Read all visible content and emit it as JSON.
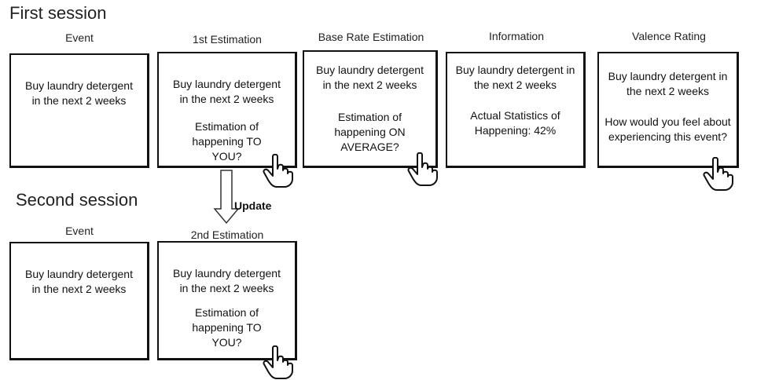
{
  "first_session": {
    "title": "First session",
    "columns": [
      {
        "label": "Event",
        "main": "Buy laundry detergent in the next 2 weeks",
        "detail": ""
      },
      {
        "label": "1st Estimation",
        "main": "Buy laundry detergent in the next 2 weeks",
        "detail": "Estimation of happening TO YOU?"
      },
      {
        "label": "Base Rate Estimation",
        "main": "Buy laundry detergent in the next 2 weeks",
        "detail": "Estimation of happening ON AVERAGE?"
      },
      {
        "label": "Information",
        "main": "Buy laundry detergent in the next 2 weeks",
        "detail": "Actual Statistics of Happening: 42%"
      },
      {
        "label": "Valence Rating",
        "main": "Buy laundry detergent in the next 2 weeks",
        "detail": "How would you feel about experiencing this event?"
      }
    ]
  },
  "update_label": "Update",
  "second_session": {
    "title": "Second session",
    "columns": [
      {
        "label": "Event",
        "main": "Buy laundry detergent in the next 2 weeks",
        "detail": ""
      },
      {
        "label": "2nd Estimation",
        "main": "Buy laundry detergent in the next 2 weeks",
        "detail": "Estimation of happening TO YOU?"
      }
    ]
  },
  "icons": {
    "pointer": "pointing-hand-icon",
    "arrow": "down-arrow-icon"
  }
}
